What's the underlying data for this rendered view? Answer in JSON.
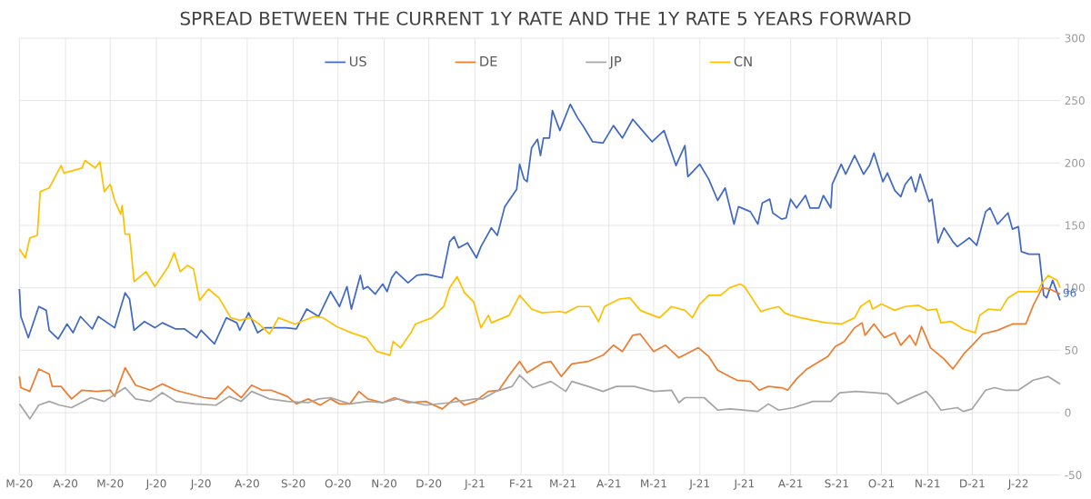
{
  "chart_data": {
    "type": "line",
    "title": "SPREAD BETWEEN THE CURRENT 1Y RATE AND THE 1Y RATE 5 YEARS FORWARD",
    "xlim": [
      "2020-03-01",
      "2022-01-29"
    ],
    "xticks": [
      {
        "value": "2020-03-01",
        "label": "M-20"
      },
      {
        "value": "2020-04-01",
        "label": "A-20"
      },
      {
        "value": "2020-05-01",
        "label": "M-20"
      },
      {
        "value": "2020-06-01",
        "label": "J-20"
      },
      {
        "value": "2020-07-01",
        "label": "J-20"
      },
      {
        "value": "2020-08-01",
        "label": "A-20"
      },
      {
        "value": "2020-09-01",
        "label": "S-20"
      },
      {
        "value": "2020-10-01",
        "label": "O-20"
      },
      {
        "value": "2020-11-01",
        "label": "N-20"
      },
      {
        "value": "2020-12-01",
        "label": "D-20"
      },
      {
        "value": "2021-01-01",
        "label": "J-21"
      },
      {
        "value": "2021-02-01",
        "label": "F-21"
      },
      {
        "value": "2021-03-01",
        "label": "M-21"
      },
      {
        "value": "2021-04-01",
        "label": "A-21"
      },
      {
        "value": "2021-05-01",
        "label": "M-21"
      },
      {
        "value": "2021-06-01",
        "label": "J-21"
      },
      {
        "value": "2021-07-01",
        "label": "J-21"
      },
      {
        "value": "2021-08-01",
        "label": "A-21"
      },
      {
        "value": "2021-09-01",
        "label": "S-21"
      },
      {
        "value": "2021-10-01",
        "label": "O-21"
      },
      {
        "value": "2021-11-01",
        "label": "N-21"
      },
      {
        "value": "2021-12-01",
        "label": "D-21"
      },
      {
        "value": "2022-01-01",
        "label": "J-22"
      }
    ],
    "ylim": [
      -50,
      300
    ],
    "yticks": [
      -50,
      0,
      50,
      100,
      150,
      200,
      250,
      300
    ],
    "grid": true,
    "legend": "top",
    "annotations": [
      {
        "text": "96",
        "x": "2022-01-29",
        "y": 96
      }
    ],
    "series": [
      {
        "name": "US",
        "color": "#4169c4",
        "x": [
          "2020-03-01",
          "2020-03-02",
          "2020-03-07",
          "2020-03-14",
          "2020-03-19",
          "2020-03-21",
          "2020-03-27",
          "2020-04-02",
          "2020-04-06",
          "2020-04-11",
          "2020-04-19",
          "2020-04-23",
          "2020-05-04",
          "2020-05-11",
          "2020-05-14",
          "2020-05-17",
          "2020-05-24",
          "2020-05-31",
          "2020-06-05",
          "2020-06-14",
          "2020-06-20",
          "2020-06-28",
          "2020-07-01",
          "2020-07-10",
          "2020-07-18",
          "2020-07-25",
          "2020-07-27",
          "2020-08-02",
          "2020-08-08",
          "2020-08-13",
          "2020-08-21",
          "2020-08-27",
          "2020-09-03",
          "2020-09-10",
          "2020-09-18",
          "2020-09-26",
          "2020-10-02",
          "2020-10-07",
          "2020-10-10",
          "2020-10-16",
          "2020-10-18",
          "2020-10-21",
          "2020-10-26",
          "2020-10-31",
          "2020-11-03",
          "2020-11-06",
          "2020-11-09",
          "2020-11-17",
          "2020-11-23",
          "2020-11-29",
          "2020-12-10",
          "2020-12-15",
          "2020-12-18",
          "2020-12-21",
          "2020-12-27",
          "2021-01-02",
          "2021-01-05",
          "2021-01-12",
          "2021-01-16",
          "2021-01-21",
          "2021-01-29",
          "2021-01-31",
          "2021-02-03",
          "2021-02-05",
          "2021-02-08",
          "2021-02-12",
          "2021-02-14",
          "2021-02-16",
          "2021-02-20",
          "2021-02-22",
          "2021-02-27",
          "2021-03-06",
          "2021-03-11",
          "2021-03-15",
          "2021-03-21",
          "2021-03-28",
          "2021-04-04",
          "2021-04-10",
          "2021-04-17",
          "2021-04-22",
          "2021-04-30",
          "2021-05-08",
          "2021-05-16",
          "2021-05-22",
          "2021-05-24",
          "2021-06-01",
          "2021-06-07",
          "2021-06-13",
          "2021-06-18",
          "2021-06-24",
          "2021-06-27",
          "2021-07-05",
          "2021-07-10",
          "2021-07-13",
          "2021-07-18",
          "2021-07-20",
          "2021-07-26",
          "2021-07-29",
          "2021-08-01",
          "2021-08-05",
          "2021-08-11",
          "2021-08-14",
          "2021-08-20",
          "2021-08-23",
          "2021-08-28",
          "2021-08-29",
          "2021-09-04",
          "2021-09-07",
          "2021-09-13",
          "2021-09-19",
          "2021-09-23",
          "2021-09-26",
          "2021-10-02",
          "2021-10-05",
          "2021-10-10",
          "2021-10-14",
          "2021-10-17",
          "2021-10-21",
          "2021-10-24",
          "2021-10-27",
          "2021-11-02",
          "2021-11-04",
          "2021-11-08",
          "2021-11-12",
          "2021-11-18",
          "2021-11-21",
          "2021-11-29",
          "2021-12-04",
          "2021-12-10",
          "2021-12-13",
          "2021-12-18",
          "2021-12-25",
          "2021-12-28",
          "2022-01-01",
          "2022-01-03",
          "2022-01-08",
          "2022-01-15",
          "2022-01-18",
          "2022-01-20",
          "2022-01-24",
          "2022-01-29"
        ],
        "values": [
          99,
          77,
          60,
          85,
          82,
          66,
          59,
          71,
          64,
          77,
          67,
          77,
          68,
          96,
          91,
          66,
          73,
          68,
          72,
          67,
          67,
          60,
          66,
          55,
          76,
          72,
          66,
          80,
          64,
          68,
          68,
          68,
          67,
          83,
          77,
          97,
          85,
          101,
          83,
          110,
          99,
          101,
          95,
          103,
          97,
          108,
          113,
          104,
          110,
          111,
          108,
          137,
          141,
          132,
          136,
          124,
          133,
          148,
          142,
          165,
          179,
          199,
          187,
          185,
          212,
          219,
          206,
          220,
          220,
          242,
          226,
          247,
          236,
          229,
          217,
          216,
          230,
          220,
          235,
          228,
          217,
          226,
          198,
          214,
          189,
          199,
          187,
          170,
          180,
          151,
          165,
          161,
          151,
          168,
          171,
          160,
          155,
          156,
          171,
          164,
          174,
          164,
          164,
          174,
          164,
          183,
          199,
          191,
          206,
          191,
          198,
          208,
          185,
          192,
          178,
          173,
          183,
          189,
          177,
          191,
          169,
          171,
          136,
          148,
          137,
          133,
          140,
          134,
          161,
          164,
          151,
          160,
          147,
          149,
          129,
          127,
          127,
          94,
          92,
          106,
          90
        ]
      },
      {
        "name": "DE",
        "color": "#ed7d31",
        "x": [
          "2020-03-01",
          "2020-03-02",
          "2020-03-08",
          "2020-03-14",
          "2020-03-21",
          "2020-03-23",
          "2020-03-29",
          "2020-04-05",
          "2020-04-12",
          "2020-04-22",
          "2020-05-01",
          "2020-05-04",
          "2020-05-11",
          "2020-05-18",
          "2020-05-28",
          "2020-06-05",
          "2020-06-14",
          "2020-06-20",
          "2020-07-03",
          "2020-07-11",
          "2020-07-19",
          "2020-07-28",
          "2020-08-04",
          "2020-08-11",
          "2020-08-17",
          "2020-08-28",
          "2020-09-03",
          "2020-09-11",
          "2020-09-19",
          "2020-09-26",
          "2020-10-02",
          "2020-10-09",
          "2020-10-15",
          "2020-10-21",
          "2020-10-31",
          "2020-11-08",
          "2020-11-17",
          "2020-11-29",
          "2020-12-10",
          "2020-12-19",
          "2020-12-25",
          "2021-01-01",
          "2021-01-10",
          "2021-01-17",
          "2021-01-24",
          "2021-01-31",
          "2021-02-05",
          "2021-02-16",
          "2021-02-21",
          "2021-02-28",
          "2021-03-07",
          "2021-03-18",
          "2021-03-28",
          "2021-04-04",
          "2021-04-10",
          "2021-04-17",
          "2021-04-22",
          "2021-05-01",
          "2021-05-09",
          "2021-05-18",
          "2021-05-31",
          "2021-06-07",
          "2021-06-13",
          "2021-06-21",
          "2021-06-26",
          "2021-07-05",
          "2021-07-11",
          "2021-07-17",
          "2021-07-26",
          "2021-07-30",
          "2021-08-05",
          "2021-08-12",
          "2021-08-19",
          "2021-08-26",
          "2021-08-31",
          "2021-09-06",
          "2021-09-13",
          "2021-09-18",
          "2021-09-20",
          "2021-09-26",
          "2021-10-03",
          "2021-10-10",
          "2021-10-14",
          "2021-10-20",
          "2021-10-24",
          "2021-10-28",
          "2021-11-03",
          "2021-11-12",
          "2021-11-18",
          "2021-11-26",
          "2021-12-01",
          "2021-12-08",
          "2021-12-18",
          "2021-12-28",
          "2022-01-06",
          "2022-01-11",
          "2022-01-17",
          "2022-01-22",
          "2022-01-29"
        ],
        "values": [
          29,
          20,
          17,
          35,
          31,
          21,
          21,
          11,
          18,
          17,
          18,
          13,
          36,
          22,
          18,
          23,
          18,
          16,
          12,
          11,
          21,
          12,
          22,
          18,
          18,
          13,
          7,
          11,
          6,
          11,
          7,
          7,
          17,
          11,
          8,
          12,
          8,
          9,
          3,
          12,
          6,
          9,
          17,
          18,
          30,
          41,
          32,
          40,
          41,
          29,
          39,
          41,
          46,
          54,
          49,
          62,
          63,
          49,
          54,
          44,
          52,
          45,
          34,
          29,
          26,
          25,
          18,
          21,
          20,
          18,
          27,
          35,
          40,
          45,
          53,
          57,
          68,
          72,
          62,
          71,
          60,
          64,
          54,
          62,
          54,
          69,
          52,
          43,
          35,
          48,
          54,
          63,
          66,
          71,
          71,
          86,
          100,
          99,
          95
        ]
      },
      {
        "name": "JP",
        "color": "#a5a5a5",
        "x": [
          "2020-03-01",
          "2020-03-04",
          "2020-03-08",
          "2020-03-14",
          "2020-03-21",
          "2020-03-28",
          "2020-04-05",
          "2020-04-18",
          "2020-04-27",
          "2020-05-11",
          "2020-05-18",
          "2020-05-28",
          "2020-06-05",
          "2020-06-14",
          "2020-06-27",
          "2020-07-11",
          "2020-07-20",
          "2020-07-28",
          "2020-08-04",
          "2020-08-16",
          "2020-08-28",
          "2020-09-11",
          "2020-09-18",
          "2020-09-26",
          "2020-10-09",
          "2020-10-21",
          "2020-10-31",
          "2020-11-10",
          "2020-11-29",
          "2020-12-15",
          "2021-01-01",
          "2021-01-06",
          "2021-01-15",
          "2021-01-26",
          "2021-01-31",
          "2021-02-09",
          "2021-02-21",
          "2021-03-03",
          "2021-03-07",
          "2021-03-18",
          "2021-03-28",
          "2021-04-06",
          "2021-04-18",
          "2021-05-01",
          "2021-05-13",
          "2021-05-18",
          "2021-05-22",
          "2021-06-04",
          "2021-06-13",
          "2021-06-21",
          "2021-06-30",
          "2021-07-10",
          "2021-07-17",
          "2021-07-24",
          "2021-08-03",
          "2021-08-16",
          "2021-08-28",
          "2021-09-03",
          "2021-09-14",
          "2021-09-27",
          "2021-10-05",
          "2021-10-12",
          "2021-10-23",
          "2021-10-31",
          "2021-11-04",
          "2021-11-10",
          "2021-11-21",
          "2021-11-25",
          "2021-12-01",
          "2021-12-10",
          "2021-12-16",
          "2021-12-23",
          "2022-01-01",
          "2022-01-11",
          "2022-01-21",
          "2022-01-29"
        ],
        "values": [
          7,
          2,
          -5,
          6,
          9,
          6,
          4,
          12,
          9,
          20,
          11,
          9,
          16,
          9,
          7,
          6,
          13,
          9,
          17,
          11,
          9,
          8,
          11,
          12,
          7,
          9,
          8,
          11,
          6,
          8,
          11,
          11,
          17,
          21,
          30,
          20,
          25,
          17,
          25,
          21,
          17,
          21,
          21,
          17,
          18,
          8,
          12,
          12,
          2,
          3,
          2,
          1,
          7,
          2,
          4,
          9,
          9,
          16,
          17,
          16,
          15,
          7,
          13,
          17,
          12,
          2,
          4,
          1,
          3,
          18,
          20,
          18,
          18,
          26,
          29,
          23
        ]
      },
      {
        "name": "CN",
        "color": "#ffc000",
        "x": [
          "2020-03-01",
          "2020-03-05",
          "2020-03-08",
          "2020-03-13",
          "2020-03-15",
          "2020-03-21",
          "2020-03-29",
          "2020-03-31",
          "2020-04-12",
          "2020-04-14",
          "2020-04-21",
          "2020-04-24",
          "2020-04-27",
          "2020-05-01",
          "2020-05-04",
          "2020-05-08",
          "2020-05-09",
          "2020-05-11",
          "2020-05-14",
          "2020-05-17",
          "2020-05-25",
          "2020-05-31",
          "2020-06-09",
          "2020-06-13",
          "2020-06-17",
          "2020-06-22",
          "2020-06-26",
          "2020-06-30",
          "2020-07-06",
          "2020-07-13",
          "2020-07-21",
          "2020-07-27",
          "2020-08-03",
          "2020-08-09",
          "2020-08-16",
          "2020-08-22",
          "2020-09-02",
          "2020-09-15",
          "2020-09-21",
          "2020-09-30",
          "2020-10-10",
          "2020-10-20",
          "2020-10-27",
          "2020-11-05",
          "2020-11-07",
          "2020-11-12",
          "2020-11-19",
          "2020-11-22",
          "2020-12-03",
          "2020-12-11",
          "2020-12-15",
          "2020-12-20",
          "2020-12-25",
          "2020-12-31",
          "2021-01-05",
          "2021-01-10",
          "2021-01-12",
          "2021-01-24",
          "2021-01-31",
          "2021-02-08",
          "2021-02-15",
          "2021-02-27",
          "2021-03-03",
          "2021-03-11",
          "2021-03-19",
          "2021-03-25",
          "2021-03-29",
          "2021-04-08",
          "2021-04-15",
          "2021-04-22",
          "2021-04-26",
          "2021-05-05",
          "2021-05-13",
          "2021-05-22",
          "2021-05-27",
          "2021-06-01",
          "2021-06-07",
          "2021-06-15",
          "2021-06-21",
          "2021-06-28",
          "2021-07-01",
          "2021-07-07",
          "2021-07-12",
          "2021-07-17",
          "2021-07-24",
          "2021-07-28",
          "2021-08-01",
          "2021-08-08",
          "2021-08-16",
          "2021-08-25",
          "2021-09-04",
          "2021-09-13",
          "2021-09-17",
          "2021-09-23",
          "2021-09-25",
          "2021-10-01",
          "2021-10-10",
          "2021-10-17",
          "2021-10-26",
          "2021-11-01",
          "2021-11-07",
          "2021-11-10",
          "2021-11-17",
          "2021-11-25",
          "2021-12-03",
          "2021-12-06",
          "2021-12-12",
          "2021-12-20",
          "2021-12-25",
          "2022-01-01",
          "2022-01-14",
          "2022-01-17",
          "2022-01-21",
          "2022-01-27",
          "2022-01-29"
        ],
        "values": [
          131,
          124,
          140,
          142,
          177,
          180,
          198,
          192,
          196,
          202,
          196,
          201,
          177,
          183,
          170,
          159,
          166,
          143,
          143,
          105,
          113,
          101,
          117,
          128,
          113,
          118,
          115,
          90,
          99,
          92,
          76,
          74,
          76,
          71,
          63,
          76,
          71,
          77,
          76,
          69,
          64,
          60,
          49,
          46,
          57,
          52,
          64,
          71,
          76,
          85,
          100,
          109,
          96,
          89,
          68,
          78,
          72,
          78,
          94,
          83,
          80,
          81,
          80,
          85,
          85,
          73,
          85,
          91,
          92,
          82,
          80,
          76,
          85,
          82,
          76,
          87,
          94,
          94,
          100,
          103,
          101,
          90,
          81,
          83,
          85,
          80,
          78,
          76,
          74,
          72,
          71,
          76,
          85,
          90,
          83,
          87,
          82,
          85,
          86,
          82,
          83,
          72,
          73,
          67,
          64,
          78,
          83,
          82,
          92,
          97,
          97,
          104,
          110,
          106,
          100
        ]
      }
    ]
  }
}
